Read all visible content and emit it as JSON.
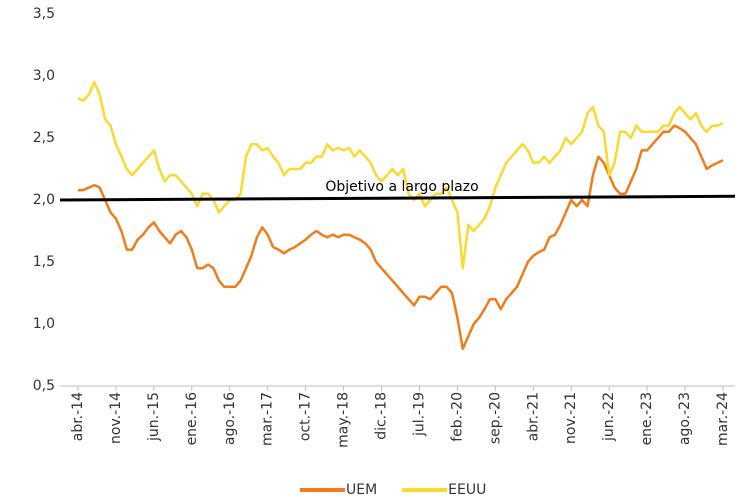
{
  "chart_data": {
    "type": "line",
    "categories": [
      "abr.-14",
      null,
      null,
      null,
      null,
      null,
      null,
      "nov.-14",
      null,
      null,
      null,
      null,
      null,
      null,
      "jun.-15",
      null,
      null,
      null,
      null,
      null,
      null,
      "ene.-16",
      null,
      null,
      null,
      null,
      null,
      null,
      "ago.-16",
      null,
      null,
      null,
      null,
      null,
      null,
      "mar.-17",
      null,
      null,
      null,
      null,
      null,
      null,
      "oct.-17",
      null,
      null,
      null,
      null,
      null,
      null,
      "may.-18",
      null,
      null,
      null,
      null,
      null,
      null,
      "dic.-18",
      null,
      null,
      null,
      null,
      null,
      null,
      "jul.-19",
      null,
      null,
      null,
      null,
      null,
      null,
      "feb.-20",
      null,
      null,
      null,
      null,
      null,
      null,
      "sep.-20",
      null,
      null,
      null,
      null,
      null,
      null,
      "abr.-21",
      null,
      null,
      null,
      null,
      null,
      null,
      "nov.-21",
      null,
      null,
      null,
      null,
      null,
      null,
      "jun.-22",
      null,
      null,
      null,
      null,
      null,
      null,
      "ene.-23",
      null,
      null,
      null,
      null,
      null,
      null,
      "ago.-23",
      null,
      null,
      null,
      null,
      null,
      null,
      "mar.-24"
    ],
    "series": [
      {
        "name": "UEM",
        "color": "#f07d1a",
        "values": [
          2.08,
          2.08,
          2.1,
          2.12,
          2.1,
          2.0,
          1.9,
          1.85,
          1.75,
          1.6,
          1.6,
          1.68,
          1.72,
          1.78,
          1.82,
          1.75,
          1.7,
          1.65,
          1.72,
          1.75,
          1.7,
          1.6,
          1.45,
          1.45,
          1.48,
          1.45,
          1.35,
          1.3,
          1.3,
          1.3,
          1.35,
          1.45,
          1.55,
          1.7,
          1.78,
          1.72,
          1.62,
          1.6,
          1.57,
          1.6,
          1.62,
          1.65,
          1.68,
          1.72,
          1.75,
          1.72,
          1.7,
          1.72,
          1.7,
          1.72,
          1.72,
          1.7,
          1.68,
          1.65,
          1.6,
          1.5,
          1.45,
          1.4,
          1.35,
          1.3,
          1.25,
          1.2,
          1.15,
          1.22,
          1.22,
          1.2,
          1.25,
          1.3,
          1.3,
          1.25,
          1.05,
          0.8,
          0.9,
          1.0,
          1.05,
          1.12,
          1.2,
          1.2,
          1.12,
          1.2,
          1.25,
          1.3,
          1.4,
          1.5,
          1.55,
          1.58,
          1.6,
          1.7,
          1.72,
          1.8,
          1.9,
          2.0,
          1.95,
          2.0,
          1.95,
          2.2,
          2.35,
          2.3,
          2.2,
          2.1,
          2.05,
          2.05,
          2.15,
          2.25,
          2.4,
          2.4,
          2.45,
          2.5,
          2.55,
          2.55,
          2.6,
          2.58,
          2.55,
          2.5,
          2.45,
          2.35,
          2.25,
          2.28,
          2.3,
          2.32
        ]
      },
      {
        "name": "EEUU",
        "color": "#fbd92f",
        "values": [
          2.82,
          2.8,
          2.85,
          2.95,
          2.85,
          2.65,
          2.6,
          2.45,
          2.35,
          2.25,
          2.2,
          2.25,
          2.3,
          2.35,
          2.4,
          2.25,
          2.15,
          2.2,
          2.2,
          2.15,
          2.1,
          2.05,
          1.95,
          2.05,
          2.05,
          2.0,
          1.9,
          1.95,
          2.0,
          2.0,
          2.05,
          2.35,
          2.45,
          2.45,
          2.4,
          2.42,
          2.35,
          2.3,
          2.2,
          2.25,
          2.25,
          2.25,
          2.3,
          2.3,
          2.35,
          2.35,
          2.45,
          2.4,
          2.42,
          2.4,
          2.42,
          2.35,
          2.4,
          2.35,
          2.3,
          2.2,
          2.15,
          2.2,
          2.25,
          2.2,
          2.25,
          2.05,
          2.0,
          2.05,
          1.95,
          2.0,
          2.05,
          2.05,
          2.1,
          2.0,
          1.9,
          1.45,
          1.8,
          1.75,
          1.8,
          1.85,
          1.95,
          2.1,
          2.2,
          2.3,
          2.35,
          2.4,
          2.45,
          2.4,
          2.3,
          2.3,
          2.35,
          2.3,
          2.35,
          2.4,
          2.5,
          2.45,
          2.5,
          2.55,
          2.7,
          2.75,
          2.6,
          2.55,
          2.2,
          2.3,
          2.55,
          2.55,
          2.5,
          2.6,
          2.55,
          2.55,
          2.55,
          2.55,
          2.6,
          2.6,
          2.7,
          2.75,
          2.7,
          2.65,
          2.7,
          2.6,
          2.55,
          2.6,
          2.6,
          2.62
        ]
      }
    ],
    "target": {
      "label": "Objetivo a largo plazo",
      "color": "#000000",
      "values": [
        2.0,
        2.03
      ]
    },
    "ylim": [
      0.5,
      3.5
    ],
    "yticks": [
      {
        "value": 0.5,
        "label": "0,5"
      },
      {
        "value": 1.0,
        "label": "1,0"
      },
      {
        "value": 1.5,
        "label": "1,5"
      },
      {
        "value": 2.0,
        "label": "2,0"
      },
      {
        "value": 2.5,
        "label": "2,5"
      },
      {
        "value": 3.0,
        "label": "3,0"
      },
      {
        "value": 3.5,
        "label": "3,5"
      }
    ]
  }
}
